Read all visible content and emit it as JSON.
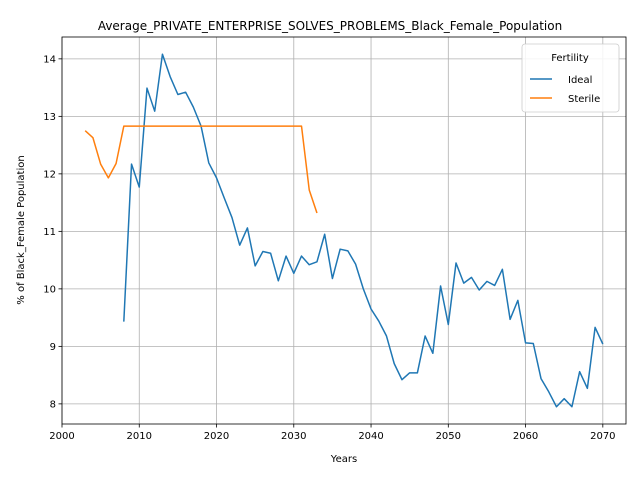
{
  "chart_data": {
    "type": "line",
    "title": "Average_PRIVATE_ENTERPRISE_SOLVES_PROBLEMS_Black_Female_Population",
    "xlabel": "Years",
    "ylabel": "% of Black_Female Population",
    "xlim": [
      2000,
      2073
    ],
    "ylim": [
      7.65,
      14.38
    ],
    "xticks": [
      2000,
      2010,
      2020,
      2030,
      2040,
      2050,
      2060,
      2070
    ],
    "yticks": [
      8,
      9,
      10,
      11,
      12,
      13,
      14
    ],
    "grid": true,
    "legend": {
      "title": "Fertility",
      "placement": "top-right"
    },
    "series": [
      {
        "name": "Ideal",
        "color": "#1f77b4",
        "x": [
          2008,
          2009,
          2010,
          2011,
          2012,
          2013,
          2014,
          2015,
          2016,
          2017,
          2018,
          2019,
          2020,
          2021,
          2022,
          2023,
          2024,
          2025,
          2026,
          2027,
          2028,
          2029,
          2030,
          2031,
          2032,
          2033,
          2034,
          2035,
          2036,
          2037,
          2038,
          2039,
          2040,
          2041,
          2042,
          2043,
          2044,
          2045,
          2046,
          2047,
          2048,
          2049,
          2050,
          2051,
          2052,
          2053,
          2054,
          2055,
          2056,
          2057,
          2058,
          2059,
          2060,
          2061,
          2062,
          2063,
          2064,
          2065,
          2066,
          2067,
          2068,
          2069,
          2070
        ],
        "values": [
          9.43,
          12.17,
          11.77,
          13.49,
          13.09,
          14.08,
          13.69,
          13.38,
          13.42,
          13.16,
          12.83,
          12.19,
          11.93,
          11.58,
          11.24,
          10.76,
          11.06,
          10.4,
          10.65,
          10.62,
          10.14,
          10.57,
          10.27,
          10.57,
          10.42,
          10.47,
          10.95,
          10.18,
          10.69,
          10.66,
          10.43,
          10.0,
          9.65,
          9.44,
          9.18,
          8.7,
          8.42,
          8.54,
          8.54,
          9.18,
          8.88,
          10.05,
          9.38,
          10.45,
          10.1,
          10.2,
          9.98,
          10.13,
          10.06,
          10.34,
          9.47,
          9.8,
          9.06,
          9.05,
          8.44,
          8.21,
          7.95,
          8.09,
          7.95,
          8.56,
          8.27,
          9.33,
          9.04
        ]
      },
      {
        "name": "Sterile",
        "color": "#ff7f0e",
        "x": [
          2003,
          2004,
          2005,
          2006,
          2007,
          2008,
          2009,
          2010,
          2011,
          2012,
          2013,
          2014,
          2015,
          2016,
          2017,
          2018,
          2019,
          2020,
          2021,
          2022,
          2023,
          2024,
          2025,
          2026,
          2027,
          2028,
          2029,
          2030,
          2031,
          2032,
          2033
        ],
        "values": [
          12.75,
          12.63,
          12.17,
          11.93,
          12.18,
          12.83,
          12.83,
          12.83,
          12.83,
          12.83,
          12.83,
          12.83,
          12.83,
          12.83,
          12.83,
          12.83,
          12.83,
          12.83,
          12.83,
          12.83,
          12.83,
          12.83,
          12.83,
          12.83,
          12.83,
          12.83,
          12.83,
          12.83,
          12.83,
          11.72,
          11.32
        ]
      }
    ]
  }
}
